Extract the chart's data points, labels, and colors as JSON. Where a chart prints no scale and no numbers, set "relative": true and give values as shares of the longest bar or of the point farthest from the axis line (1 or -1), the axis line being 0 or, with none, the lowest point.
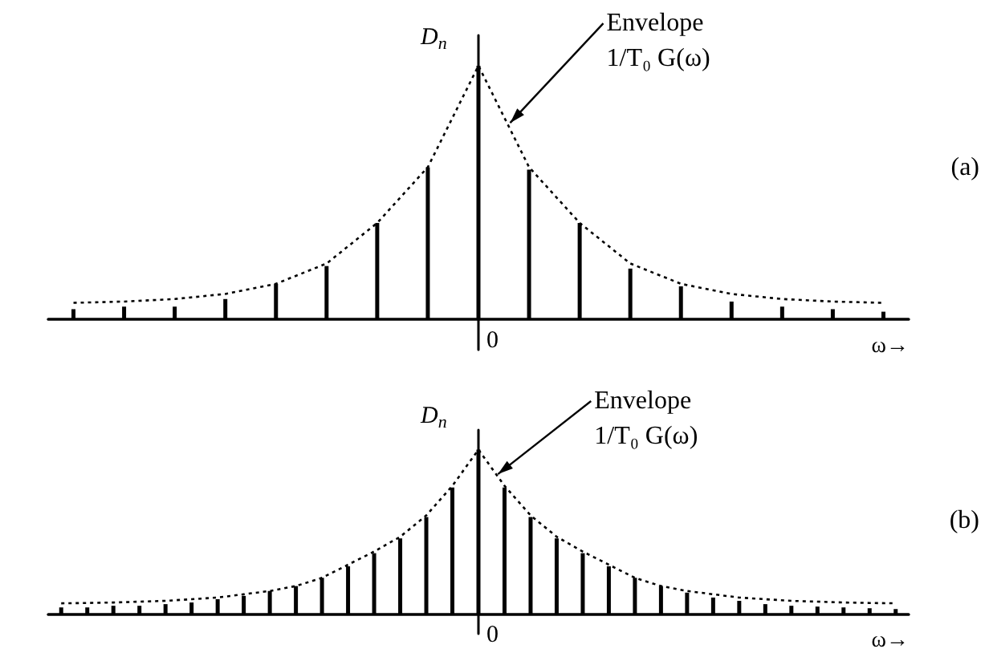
{
  "chart_data": [
    {
      "type": "bar",
      "relative": true,
      "ylabel": "D$_{n}$",
      "xlabel": "ω→",
      "categories": [
        null,
        null,
        null,
        null,
        null,
        null,
        null,
        null,
        null,
        null,
        null,
        null,
        null,
        null,
        null,
        null,
        null
      ],
      "annotations": [
        "(a)",
        "0"
      ],
      "series": [
        {
          "color": "#000000",
          "values": [
            0.04,
            0.05,
            0.05,
            0.08,
            0.14,
            0.21,
            0.38,
            0.6,
            1,
            0.59,
            0.38,
            0.2,
            0.13,
            0.07,
            0.05,
            0.04,
            0.03
          ]
        }
      ]
    },
    {
      "type": "line",
      "relative": true,
      "categories": [
        null,
        null,
        null,
        null,
        null,
        null,
        null,
        null,
        null,
        null,
        null,
        null,
        null,
        null,
        null,
        null,
        null
      ],
      "annotations": [
        "Envelope",
        "1/T₀ G(ω)"
      ],
      "series": [
        {
          "color": "#000000",
          "line_style": "dotted",
          "marker": "none",
          "values": [
            0.065,
            0.07,
            0.08,
            0.1,
            0.14,
            0.22,
            0.38,
            0.6,
            1,
            0.6,
            0.38,
            0.22,
            0.14,
            0.1,
            0.08,
            0.07,
            0.065
          ]
        }
      ]
    },
    {
      "type": "bar",
      "relative": true,
      "ylabel": "D$_{n}$",
      "xlabel": "ω→",
      "categories": [
        null,
        null,
        null,
        null,
        null,
        null,
        null,
        null,
        null,
        null,
        null,
        null,
        null,
        null,
        null,
        null,
        null,
        null,
        null,
        null,
        null,
        null,
        null,
        null,
        null,
        null,
        null,
        null,
        null,
        null,
        null,
        null,
        null
      ],
      "annotations": [
        "(b)",
        "0"
      ],
      "series": [
        {
          "color": "#000000",
          "values": [
            0.04,
            0.04,
            0.05,
            0.05,
            0.06,
            0.07,
            0.09,
            0.11,
            0.14,
            0.17,
            0.22,
            0.29,
            0.37,
            0.46,
            0.59,
            0.77,
            1,
            0.77,
            0.59,
            0.46,
            0.37,
            0.29,
            0.22,
            0.17,
            0.13,
            0.1,
            0.08,
            0.06,
            0.05,
            0.045,
            0.04,
            0.035,
            0.03
          ]
        }
      ]
    },
    {
      "type": "line",
      "relative": true,
      "categories": [
        null,
        null,
        null,
        null,
        null,
        null,
        null,
        null,
        null,
        null,
        null,
        null,
        null,
        null,
        null,
        null,
        null,
        null,
        null,
        null,
        null,
        null,
        null,
        null,
        null,
        null,
        null,
        null,
        null,
        null,
        null,
        null,
        null
      ],
      "annotations": [
        "Envelope",
        "1/T₀ G(ω)"
      ],
      "series": [
        {
          "color": "#000000",
          "line_style": "dotted",
          "marker": "none",
          "values": [
            0.065,
            0.067,
            0.07,
            0.075,
            0.08,
            0.09,
            0.1,
            0.12,
            0.14,
            0.17,
            0.22,
            0.3,
            0.38,
            0.47,
            0.6,
            0.78,
            1,
            0.78,
            0.6,
            0.47,
            0.38,
            0.3,
            0.22,
            0.17,
            0.14,
            0.12,
            0.1,
            0.09,
            0.08,
            0.075,
            0.07,
            0.067,
            0.065
          ]
        }
      ]
    }
  ]
}
